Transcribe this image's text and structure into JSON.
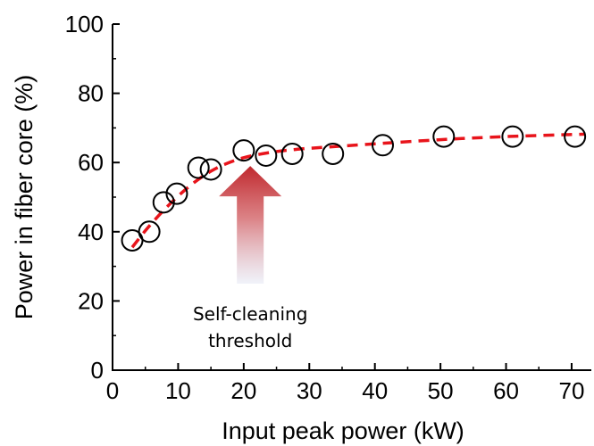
{
  "chart_data": {
    "type": "scatter",
    "title": "",
    "xlabel": "Input peak power (kW)",
    "ylabel": "Power in fiber core (%)",
    "xlim": [
      0,
      73
    ],
    "ylim": [
      0,
      100
    ],
    "x_ticks": [
      0,
      10,
      20,
      30,
      40,
      50,
      60,
      70
    ],
    "y_ticks": [
      0,
      20,
      40,
      60,
      80,
      100
    ],
    "grid": false,
    "legend": "none",
    "series": [
      {
        "marker": "open-circle",
        "color": "#000000",
        "x": [
          3.0,
          5.6,
          7.8,
          9.8,
          13.1,
          15.0,
          20.0,
          23.4,
          27.4,
          33.6,
          41.2,
          50.5,
          61.0,
          70.5
        ],
        "y": [
          37.5,
          40.0,
          48.5,
          51.0,
          58.5,
          58.0,
          63.5,
          62.0,
          62.5,
          62.5,
          65.0,
          67.5,
          67.5,
          67.5
        ]
      }
    ],
    "fit_curve": {
      "style": "dashed",
      "color": "#e8141b",
      "x": [
        3,
        5,
        7,
        9,
        11,
        13,
        15,
        17,
        20,
        24,
        28,
        33,
        40,
        50,
        60,
        72
      ],
      "y": [
        35.5,
        40.3,
        44.6,
        48.5,
        52.0,
        55.0,
        57.5,
        59.4,
        61.4,
        62.9,
        63.8,
        64.5,
        65.4,
        66.6,
        67.5,
        68.2
      ]
    },
    "annotation": {
      "lines": [
        "Self-cleaning",
        "threshold"
      ],
      "arrow_color": "#c0282d",
      "arrow_x": 21,
      "arrow_tip_y": 59,
      "arrow_base_y": 25
    }
  }
}
